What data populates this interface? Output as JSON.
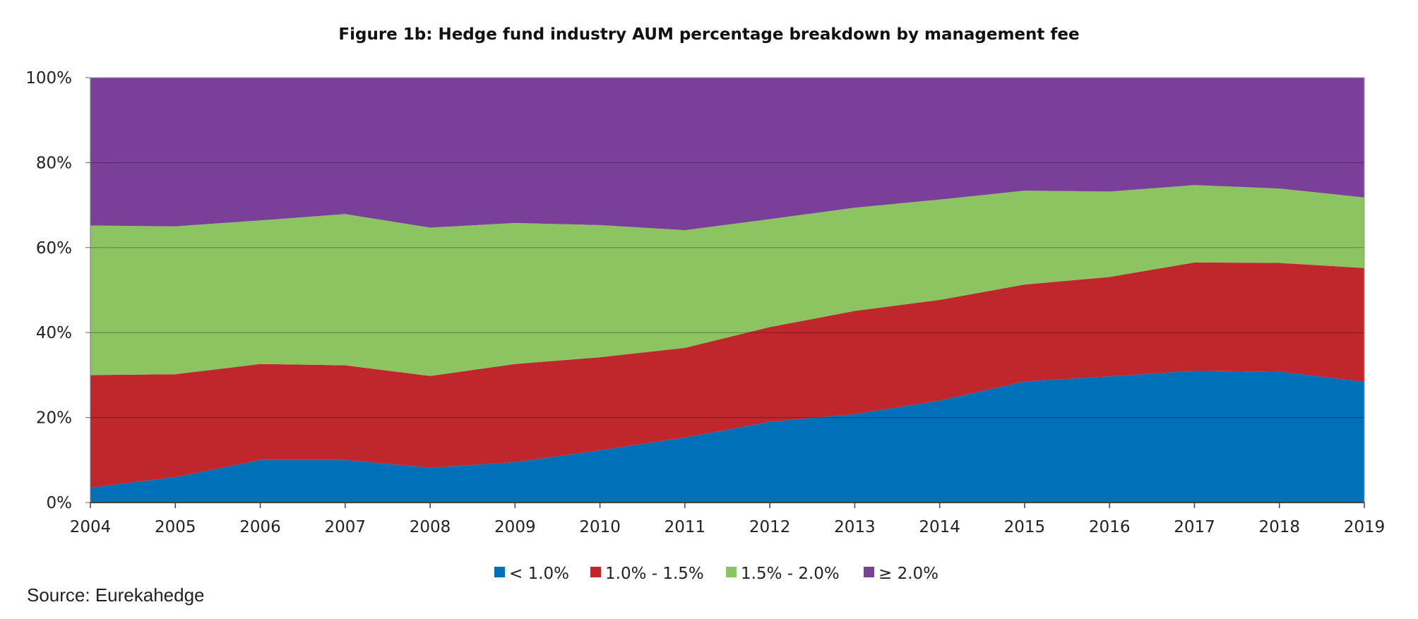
{
  "chart_data": {
    "type": "area",
    "stacked": true,
    "title": "Figure 1b: Hedge fund industry AUM percentage breakdown by management fee",
    "xlabel": "",
    "ylabel": "",
    "x": [
      "2004",
      "2005",
      "2006",
      "2007",
      "2008",
      "2009",
      "2010",
      "2011",
      "2012",
      "2013",
      "2014",
      "2015",
      "2016",
      "2017",
      "2018",
      "2019"
    ],
    "yticks": [
      "0%",
      "20%",
      "40%",
      "60%",
      "80%",
      "100%"
    ],
    "ylim": [
      0,
      100
    ],
    "grid": true,
    "legend_position": "bottom",
    "series": [
      {
        "name": "< 1.0%",
        "color": "#0070b8",
        "values": [
          3.5,
          6,
          10,
          10,
          8.2,
          9.5,
          12.3,
          15.3,
          19,
          20.8,
          24,
          28.5,
          29.7,
          31,
          30.8,
          28.4
        ]
      },
      {
        "name": "1.0% - 1.5%",
        "color": "#c0272d",
        "values": [
          26.5,
          24.2,
          22.6,
          22.3,
          21.6,
          23.1,
          21.9,
          21.1,
          22.3,
          24.3,
          23.7,
          22.8,
          23.4,
          25.5,
          25.6,
          26.8
        ]
      },
      {
        "name": "1.5% - 2.0%",
        "color": "#8dc462",
        "values": [
          35.2,
          34.8,
          33.8,
          35.6,
          34.9,
          33.2,
          31.1,
          27.7,
          25.4,
          24.3,
          23.6,
          22.1,
          20.1,
          18.2,
          17.5,
          16.6
        ]
      },
      {
        "name": "≥ 2.0%",
        "color": "#7a3f98",
        "values": [
          34.8,
          35,
          33.6,
          32.1,
          35.3,
          34.2,
          34.7,
          35.9,
          33.3,
          30.6,
          28.7,
          26.6,
          26.8,
          25.3,
          26.1,
          28.2
        ]
      }
    ]
  },
  "source_text": "Source: Eurekahedge"
}
